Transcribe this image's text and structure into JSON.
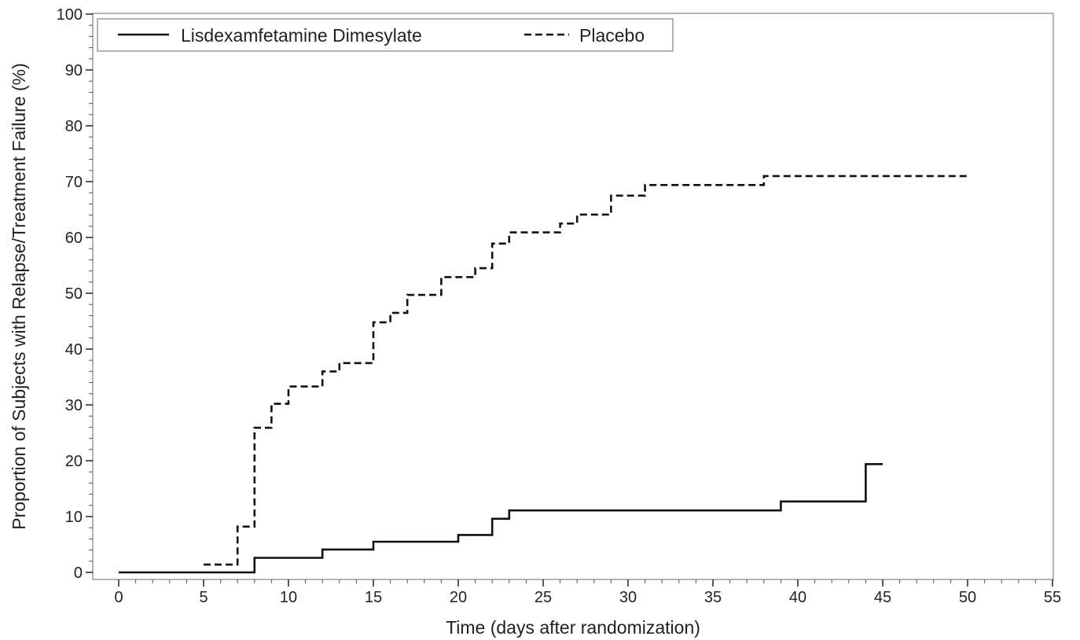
{
  "chart_data": {
    "type": "line",
    "title": "",
    "xlabel": "Time (days after randomization)",
    "ylabel": "Proportion of Subjects with Relapse/Treatment Failure (%)",
    "xlim": [
      -1.5,
      55
    ],
    "ylim": [
      -1,
      100
    ],
    "x_ticks": [
      0,
      5,
      10,
      15,
      20,
      25,
      30,
      35,
      40,
      45,
      50,
      55
    ],
    "y_ticks": [
      0,
      10,
      20,
      30,
      40,
      50,
      60,
      70,
      80,
      90,
      100
    ],
    "x_minor_step": 1,
    "y_minor_step": 2,
    "grid": false,
    "step": true,
    "legend_position": "top-left",
    "series": [
      {
        "name": "Lisdexamfetamine Dimesylate",
        "line_style": "solid",
        "color": "#111111",
        "x": [
          0,
          8,
          12,
          15,
          20,
          22,
          23,
          39,
          44,
          45
        ],
        "y": [
          0,
          2.6,
          4.1,
          5.5,
          6.7,
          9.6,
          11.1,
          12.7,
          19.4,
          19.4
        ]
      },
      {
        "name": "Placebo",
        "line_style": "dashed",
        "color": "#111111",
        "x": [
          5,
          7,
          8,
          9,
          10,
          12,
          13,
          15,
          16,
          17,
          19,
          20,
          21,
          22,
          23,
          26,
          27,
          29,
          31,
          38,
          50
        ],
        "y": [
          1.4,
          8.2,
          25.9,
          30.2,
          33.3,
          36.0,
          37.5,
          44.8,
          46.5,
          49.7,
          52.9,
          52.9,
          54.5,
          58.9,
          60.9,
          62.5,
          64.1,
          67.5,
          69.4,
          71.0,
          71.0
        ]
      }
    ]
  }
}
